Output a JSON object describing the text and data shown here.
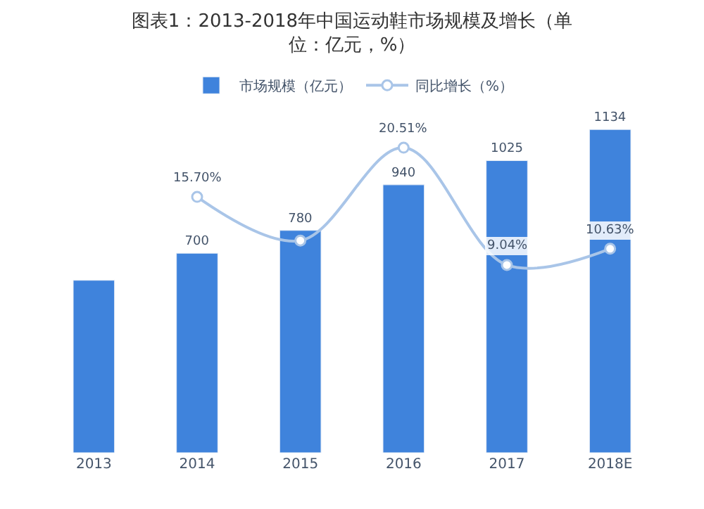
{
  "chart_data": {
    "type": "bar",
    "title": "图表1：2013-2018年中国运动鞋市场规模及增长（单位：亿元，%）",
    "categories": [
      "2013",
      "2014",
      "2015",
      "2016",
      "2017",
      "2018E"
    ],
    "legend": "top",
    "tick_labels": "x",
    "series": [
      {
        "name": "市场规模（亿元）",
        "color": "#3f83dc",
        "values": [
          605,
          700,
          780,
          940,
          1025,
          1134
        ],
        "value_labels": [
          null,
          "700",
          "780",
          "940",
          "1025",
          "1134"
        ]
      },
      {
        "name": "同比增长（%）",
        "type": "line",
        "axis": "y2",
        "color": "#a9c5e8",
        "marker": "circle",
        "values": [
          null,
          15.7,
          11.43,
          20.51,
          9.04,
          10.63
        ],
        "value_labels": [
          null,
          "15.70%",
          null,
          "20.51%",
          "9.04%",
          "10.63%"
        ]
      }
    ]
  }
}
